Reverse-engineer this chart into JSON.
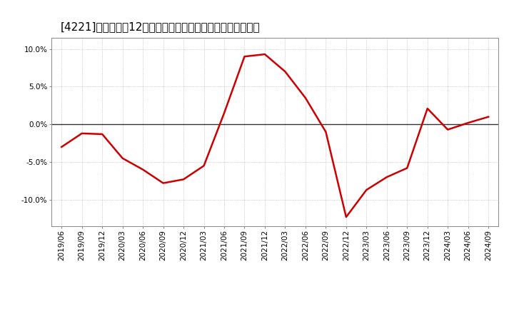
{
  "title": "[4221]　売上高の12か月移動合計の対前年同期増減率の推移",
  "line_color": "#cc0000",
  "background_color": "#ffffff",
  "grid_color": "#aaaaaa",
  "zero_line_color": "#333333",
  "x_labels": [
    "2019/06",
    "2019/09",
    "2019/12",
    "2020/03",
    "2020/06",
    "2020/09",
    "2020/12",
    "2021/03",
    "2021/06",
    "2021/09",
    "2021/12",
    "2022/03",
    "2022/06",
    "2022/09",
    "2022/12",
    "2023/03",
    "2023/06",
    "2023/09",
    "2023/12",
    "2024/03",
    "2024/06",
    "2024/09"
  ],
  "y_values": [
    -3.0,
    -1.2,
    -1.3,
    -4.5,
    -6.0,
    -7.8,
    -7.3,
    -5.5,
    1.5,
    9.0,
    9.3,
    7.0,
    3.5,
    -1.0,
    -12.3,
    -8.7,
    -7.0,
    -5.8,
    2.1,
    -0.7,
    0.2,
    1.0
  ],
  "ylim": [
    -13.5,
    11.5
  ],
  "yticks": [
    -10.0,
    -5.0,
    0.0,
    5.0,
    10.0
  ],
  "line_width": 1.8,
  "title_fontsize": 11,
  "tick_fontsize": 7.5
}
